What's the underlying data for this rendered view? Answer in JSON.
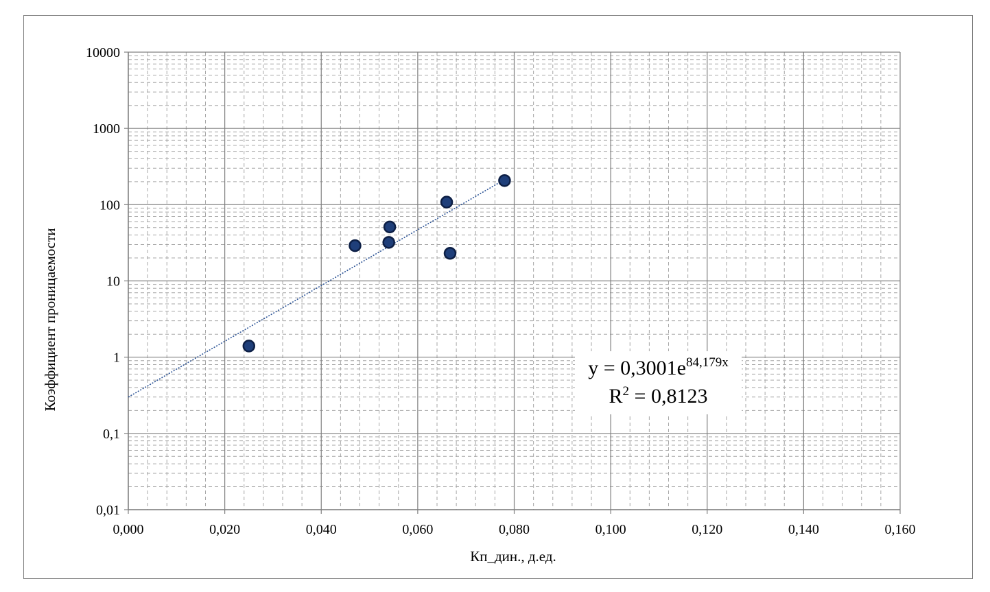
{
  "chart_data": {
    "type": "scatter",
    "xlabel": "Кп_дин., д.ед.",
    "ylabel": "Коэффициент проницаемости",
    "xlim": [
      0,
      0.16
    ],
    "ylim": [
      0.01,
      10000
    ],
    "y_scale": "log",
    "grid": true,
    "x_ticks": [
      0,
      0.02,
      0.04,
      0.06,
      0.08,
      0.1,
      0.12,
      0.14,
      0.16
    ],
    "x_tick_labels": [
      "0,000",
      "0,020",
      "0,040",
      "0,060",
      "0,080",
      "0,100",
      "0,120",
      "0,140",
      "0,160"
    ],
    "y_ticks": [
      0.01,
      0.1,
      1,
      10,
      100,
      1000,
      10000
    ],
    "y_tick_labels": [
      "0,01",
      "0,1",
      "1",
      "10",
      "100",
      "1000",
      "10000"
    ],
    "series": [
      {
        "marker_color": "#1f3f7a",
        "points": [
          {
            "x": 0.025,
            "y": 1.4
          },
          {
            "x": 0.047,
            "y": 29
          },
          {
            "x": 0.054,
            "y": 32
          },
          {
            "x": 0.0542,
            "y": 51
          },
          {
            "x": 0.066,
            "y": 108
          },
          {
            "x": 0.0667,
            "y": 23
          },
          {
            "x": 0.078,
            "y": 207
          }
        ]
      }
    ],
    "trendline": {
      "type": "exponential",
      "a": 0.3001,
      "b": 84.179,
      "x_range": [
        0,
        0.078
      ],
      "color": "#2e5597",
      "equation_prefix": "y = 0,3001e",
      "equation_exponent": "84,179x",
      "r2_prefix": "R",
      "r2_power": "2",
      "r2_value": " = 0,8123"
    }
  }
}
